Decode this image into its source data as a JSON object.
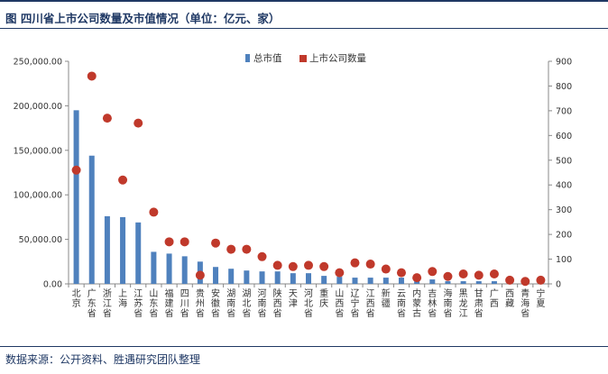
{
  "header": {
    "title": "图 四川省上市公司数量及市值情况（单位：亿元、家）"
  },
  "footer": {
    "source": "数据来源：公开资料、胜遇研究团队整理"
  },
  "chart_data": {
    "type": "bar",
    "title": "图 四川省上市公司数量及市值情况（单位：亿元、家）",
    "categories": [
      "北京",
      "广东省",
      "浙江省",
      "上海",
      "江苏省",
      "山东省",
      "福建省",
      "四川省",
      "贵州省",
      "安徽省",
      "湖南省",
      "湖北省",
      "河南省",
      "陕西省",
      "天津",
      "河北省",
      "重庆",
      "山西省",
      "辽宁省",
      "江西省",
      "新疆",
      "云南省",
      "内蒙古",
      "吉林省",
      "海南省",
      "黑龙江",
      "甘肃省",
      "广西",
      "西藏",
      "青海省",
      "宁夏"
    ],
    "series": [
      {
        "name": "总市值",
        "type": "bar",
        "axis": "left",
        "color": "#4f81bd",
        "values": [
          195000,
          144000,
          76000,
          75000,
          69000,
          36000,
          34000,
          31000,
          25000,
          19000,
          17000,
          15000,
          14000,
          14000,
          12000,
          12000,
          9000,
          8000,
          7000,
          7000,
          7000,
          7000,
          5000,
          5000,
          3000,
          3000,
          3000,
          3000,
          2500,
          2000,
          1500
        ]
      },
      {
        "name": "上市公司数量",
        "type": "scatter",
        "axis": "right",
        "color": "#c0392b",
        "values": [
          460,
          840,
          670,
          420,
          650,
          290,
          170,
          170,
          35,
          165,
          140,
          140,
          110,
          75,
          70,
          75,
          70,
          45,
          85,
          80,
          60,
          45,
          25,
          50,
          30,
          40,
          35,
          40,
          15,
          10,
          15
        ]
      }
    ],
    "ylim_left": [
      0,
      250000
    ],
    "yticks_left": [
      "0.00",
      "50,000.00",
      "100,000.00",
      "150,000.00",
      "200,000.00",
      "250,000.00"
    ],
    "ylim_right": [
      0,
      900
    ],
    "yticks_right": [
      "0",
      "100",
      "200",
      "300",
      "400",
      "500",
      "600",
      "700",
      "800",
      "900"
    ],
    "legend_position": "top-center",
    "grid": false
  }
}
